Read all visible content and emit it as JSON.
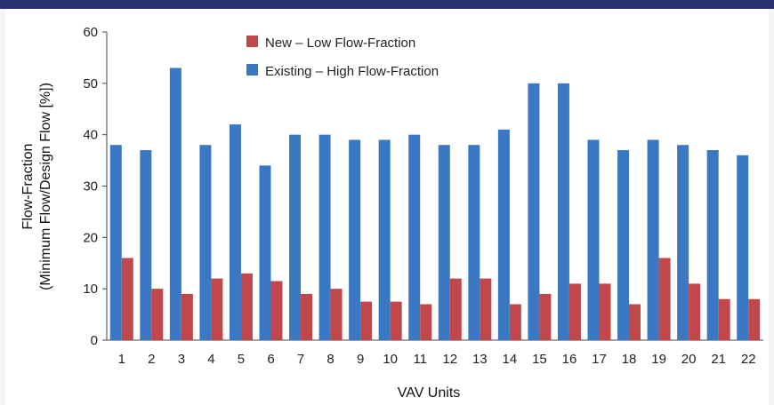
{
  "chart_data": {
    "type": "bar",
    "categories": [
      "1",
      "2",
      "3",
      "4",
      "5",
      "6",
      "7",
      "8",
      "9",
      "10",
      "11",
      "12",
      "13",
      "14",
      "15",
      "16",
      "17",
      "18",
      "19",
      "20",
      "21",
      "22"
    ],
    "series": [
      {
        "name": "New – Low Flow-Fraction",
        "color": "#c0474b",
        "values": [
          16,
          10,
          9,
          12,
          13,
          11.5,
          9,
          10,
          7.5,
          7.5,
          7,
          12,
          12,
          7,
          9,
          11,
          11,
          7,
          16,
          11,
          8,
          8
        ]
      },
      {
        "name": "Existing – High Flow-Fraction",
        "color": "#3a78c3",
        "values": [
          38,
          37,
          53,
          38,
          42,
          34,
          40,
          40,
          39,
          39,
          40,
          38,
          38,
          41,
          50,
          50,
          39,
          37,
          39,
          38,
          37,
          36
        ]
      }
    ],
    "xlabel": "VAV Units",
    "ylabel": [
      "Flow-Fraction",
      "(Minimum Flow/Design Flow [%])"
    ],
    "ylim": [
      0,
      60
    ],
    "yticks": [
      0,
      10,
      20,
      30,
      40,
      50,
      60
    ],
    "grid": false,
    "legend_position": "top-center"
  }
}
